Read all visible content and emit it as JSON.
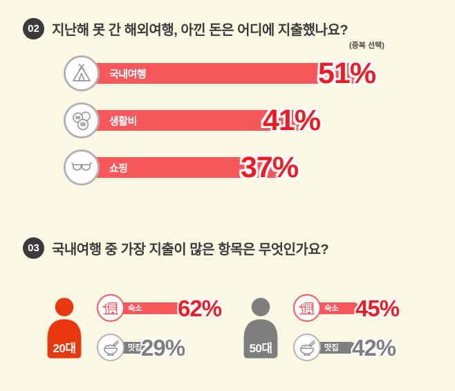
{
  "colors": {
    "background": "#FAF7E3",
    "bar_red": "#F8575C",
    "pct_red": "#EC1B24",
    "person_red": "#E8380D",
    "gray": "#7E7E7E",
    "icon_gray": "#8F8F8F",
    "circle_gray": "#B3B3B3",
    "text_dark": "#3B3B3B"
  },
  "q2": {
    "badge": "02",
    "title": "지난해 못 간 해외여행, 아낀 돈은 어디에 지출했나요?",
    "note": "(중복 선택)",
    "bars": [
      {
        "icon": "tent-icon",
        "label": "국내여행",
        "value": 51,
        "value_label": "51%"
      },
      {
        "icon": "coins-icon",
        "label": "생활비",
        "value": 41,
        "value_label": "41%"
      },
      {
        "icon": "sunglasses-icon",
        "label": "쇼핑",
        "value": 37,
        "value_label": "37%"
      }
    ]
  },
  "q3": {
    "badge": "03",
    "title": "국내여행 중 가장 지출이 많은 항목은 무엇인가요?",
    "groups": [
      {
        "age": "20대",
        "items": [
          {
            "icon": "hotel-icon",
            "label": "숙소",
            "value": 62,
            "value_label": "62%",
            "accent": "red"
          },
          {
            "icon": "food-icon",
            "label": "맛집",
            "value": 29,
            "value_label": "29%",
            "accent": "gray"
          }
        ]
      },
      {
        "age": "50대",
        "items": [
          {
            "icon": "hotel-icon",
            "label": "숙소",
            "value": 45,
            "value_label": "45%",
            "accent": "red"
          },
          {
            "icon": "food-icon",
            "label": "맛집",
            "value": 42,
            "value_label": "42%",
            "accent": "gray"
          }
        ]
      }
    ]
  },
  "chart_data": [
    {
      "type": "bar",
      "orientation": "horizontal",
      "title": "지난해 못 간 해외여행, 아낀 돈은 어디에 지출했나요?",
      "note": "(중복 선택)",
      "categories": [
        "국내여행",
        "생활비",
        "쇼핑"
      ],
      "values": [
        51,
        41,
        37
      ],
      "unit": "%",
      "xlim": [
        0,
        100
      ],
      "legend_position": "none",
      "grid": false
    },
    {
      "type": "bar",
      "orientation": "horizontal",
      "title": "국내여행 중 가장 지출이 많은 항목은 무엇인가요?",
      "categories": [
        "숙소",
        "맛집"
      ],
      "series": [
        {
          "name": "20대",
          "values": [
            62,
            29
          ]
        },
        {
          "name": "50대",
          "values": [
            45,
            42
          ]
        }
      ],
      "unit": "%",
      "xlim": [
        0,
        100
      ],
      "legend_position": "left",
      "grid": false
    }
  ]
}
